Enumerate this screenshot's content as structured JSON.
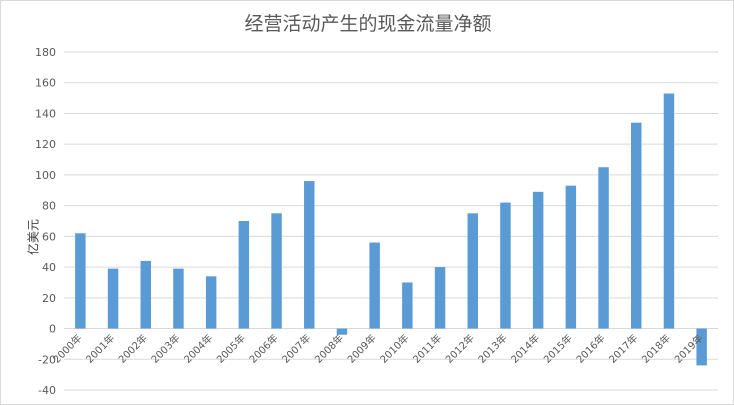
{
  "chart_data": {
    "type": "bar",
    "title": "经营活动产生的现金流量净额",
    "ylabel": "亿美元",
    "xlabel": "",
    "ylim": [
      -40,
      180
    ],
    "yticks": [
      -40,
      -20,
      0,
      20,
      40,
      60,
      80,
      100,
      120,
      140,
      160,
      180
    ],
    "grid": true,
    "legend": "none",
    "bar_color": "#5b9bd5",
    "categories": [
      "2000年",
      "2001年",
      "2002年",
      "2003年",
      "2004年",
      "2005年",
      "2006年",
      "2007年",
      "2008年",
      "2009年",
      "2010年",
      "2011年",
      "2012年",
      "2013年",
      "2014年",
      "2015年",
      "2016年",
      "2017年",
      "2018年",
      "2019年"
    ],
    "values": [
      62,
      39,
      44,
      39,
      34,
      70,
      75,
      96,
      -4,
      56,
      30,
      40,
      75,
      82,
      89,
      93,
      105,
      134,
      153,
      -24
    ]
  }
}
